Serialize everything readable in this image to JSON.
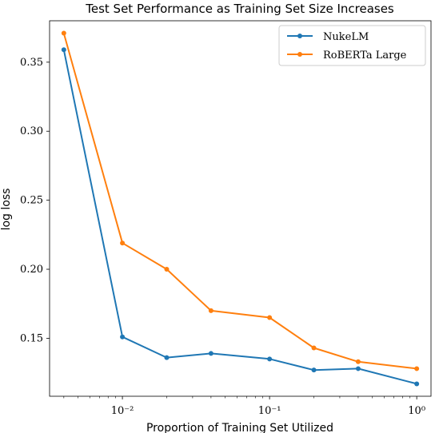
{
  "chart_data": {
    "type": "line",
    "title": "Test Set Performance as Training Set Size Increases",
    "xlabel": "Proportion of Training Set Utilized",
    "ylabel": "log loss",
    "x_scale": "log",
    "xlim": [
      0.0032,
      1.25
    ],
    "ylim": [
      0.108,
      0.38
    ],
    "grid": false,
    "legend_position": "top-right",
    "x": [
      0.004,
      0.01,
      0.02,
      0.04,
      0.1,
      0.2,
      0.4,
      1.0
    ],
    "x_ticks": [
      {
        "value": 0.01,
        "label": "10⁻²"
      },
      {
        "value": 0.1,
        "label": "10⁻¹"
      },
      {
        "value": 1.0,
        "label": "10⁰"
      }
    ],
    "y_ticks": [
      {
        "value": 0.15,
        "label": "0.15"
      },
      {
        "value": 0.2,
        "label": "0.20"
      },
      {
        "value": 0.25,
        "label": "0.25"
      },
      {
        "value": 0.3,
        "label": "0.30"
      },
      {
        "value": 0.35,
        "label": "0.35"
      }
    ],
    "series": [
      {
        "name": "NukeLM",
        "color": "#1f77b4",
        "values": [
          0.359,
          0.151,
          0.136,
          0.139,
          0.135,
          0.127,
          0.128,
          0.117
        ]
      },
      {
        "name": "RoBERTa Large",
        "color": "#ff7f0e",
        "values": [
          0.371,
          0.219,
          0.2,
          0.17,
          0.165,
          0.143,
          0.133,
          0.128
        ]
      }
    ]
  }
}
